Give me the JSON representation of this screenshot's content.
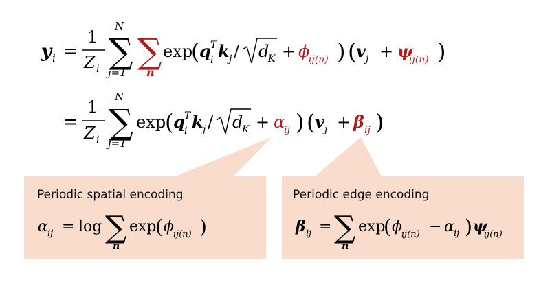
{
  "colors": {
    "accent_red": "#b11d1d",
    "callout_fill": "#f9dccc",
    "text": "#000000"
  },
  "equation": {
    "line1": {
      "lhs_symbol": "y",
      "lhs_subscript": "i",
      "equals": "=",
      "frac_numerator": "1",
      "frac_denominator": "Z",
      "frac_denominator_sub": "i",
      "sum1_upper": "N",
      "sum1_lower": "j=1",
      "sum2_lower": "n",
      "exp": "exp",
      "q": "q",
      "q_sup": "T",
      "q_sub": "i",
      "k": "k",
      "k_sub": "j",
      "slash": "/",
      "sqrt_d": "d",
      "sqrt_d_sub": "K",
      "plus": "+",
      "phi": "ϕ",
      "phi_sub": "ij(n)",
      "v": "v",
      "v_sub": "j",
      "psi": "ψ",
      "psi_sub": "ij(n)"
    },
    "line2": {
      "equals": "=",
      "frac_numerator": "1",
      "frac_denominator": "Z",
      "frac_denominator_sub": "i",
      "sum_upper": "N",
      "sum_lower": "j=1",
      "exp": "exp",
      "alpha": "α",
      "alpha_sub": "ij",
      "beta": "β",
      "beta_sub": "ij"
    }
  },
  "callouts": {
    "spatial": {
      "title": "Periodic spatial encoding",
      "formula_lhs": "α",
      "formula_lhs_sub": "ij",
      "formula_equals": "=",
      "formula_log": "log",
      "formula_sum_lower": "n",
      "formula_exp": "exp",
      "formula_phi": "ϕ",
      "formula_phi_sub": "ij(n)"
    },
    "edge": {
      "title": "Periodic edge encoding",
      "formula_lhs": "β",
      "formula_lhs_sub": "ij",
      "formula_equals": "=",
      "formula_sum_lower": "n",
      "formula_exp": "exp",
      "formula_phi": "ϕ",
      "formula_phi_sub": "ij(n)",
      "formula_minus": "−",
      "formula_alpha": "α",
      "formula_alpha_sub": "ij",
      "formula_psi": "ψ",
      "formula_psi_sub": "ij(n)"
    }
  }
}
